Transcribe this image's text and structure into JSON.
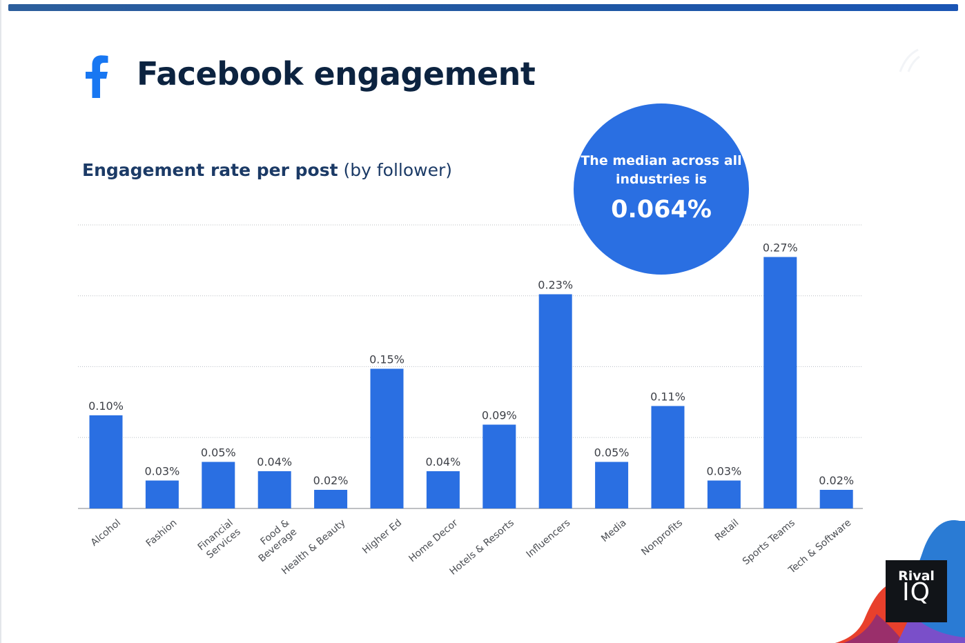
{
  "header": {
    "title": "Facebook engagement",
    "subtitle_bold": "Engagement rate per post",
    "subtitle_light": "(by follower)"
  },
  "callout": {
    "line1": "The median across all",
    "line2": "industries is",
    "value": "0.064%"
  },
  "logo": {
    "top": "Rival",
    "bottom": "IQ"
  },
  "icons": {
    "facebook": "facebook-f-icon"
  },
  "colors": {
    "bar": "#2a6fe2",
    "title": "#0c2340",
    "subtitle": "#1b3a66",
    "callout": "#2a6fe2"
  },
  "chart_data": {
    "type": "bar",
    "categories": [
      "Alcohol",
      "Fashion",
      "Financial Services",
      "Food & Beverage",
      "Health & Beauty",
      "Higher Ed",
      "Home Decor",
      "Hotels & Resorts",
      "Influencers",
      "Media",
      "Nonprofits",
      "Retail",
      "Sports Teams",
      "Tech & Software"
    ],
    "values": [
      0.1,
      0.03,
      0.05,
      0.04,
      0.02,
      0.15,
      0.04,
      0.09,
      0.23,
      0.05,
      0.11,
      0.03,
      0.27,
      0.02
    ],
    "labels": [
      "0.10%",
      "0.03%",
      "0.05%",
      "0.04%",
      "0.02%",
      "0.15%",
      "0.04%",
      "0.09%",
      "0.23%",
      "0.05%",
      "0.11%",
      "0.03%",
      "0.27%",
      "0.02%"
    ],
    "title": "Engagement rate per post (by follower)",
    "ylim": [
      0,
      0.3
    ],
    "grid": true,
    "legend": "none"
  }
}
